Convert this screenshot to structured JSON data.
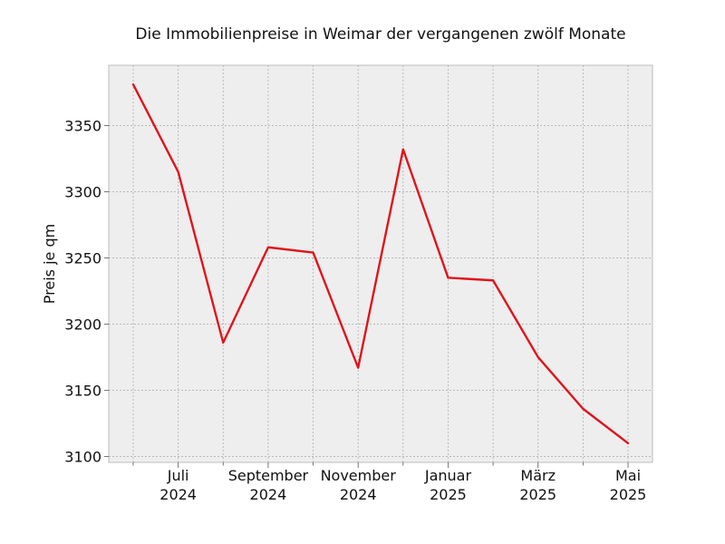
{
  "chart_data": {
    "type": "line",
    "title": "Die Immobilienpreise in Weimar der vergangenen zwölf Monate",
    "xlabel": "",
    "ylabel": "Preis je qm",
    "x": [
      "2024-06",
      "2024-07",
      "2024-08",
      "2024-09",
      "2024-10",
      "2024-11",
      "2024-12",
      "2025-01",
      "2025-02",
      "2025-03",
      "2025-04",
      "2025-05"
    ],
    "series": [
      {
        "values": [
          3381,
          3315,
          3186,
          3258,
          3254,
          3167,
          3332,
          3235,
          3233,
          3175,
          3136,
          3110
        ]
      }
    ],
    "xticks": [
      {
        "x": "2024-07",
        "label": [
          "Juli",
          "2024"
        ]
      },
      {
        "x": "2024-09",
        "label": [
          "September",
          "2024"
        ]
      },
      {
        "x": "2024-11",
        "label": [
          "November",
          "2024"
        ]
      },
      {
        "x": "2025-01",
        "label": [
          "Januar",
          "2025"
        ]
      },
      {
        "x": "2025-03",
        "label": [
          "März",
          "2025"
        ]
      },
      {
        "x": "2025-05",
        "label": [
          "Mai",
          "2025"
        ]
      }
    ],
    "yticks": [
      3100,
      3150,
      3200,
      3250,
      3300,
      3350
    ],
    "ylim": [
      3095.5,
      3395.5
    ],
    "grid": true,
    "line_color": "#e0141b",
    "plot_background": "#eeeeee"
  }
}
